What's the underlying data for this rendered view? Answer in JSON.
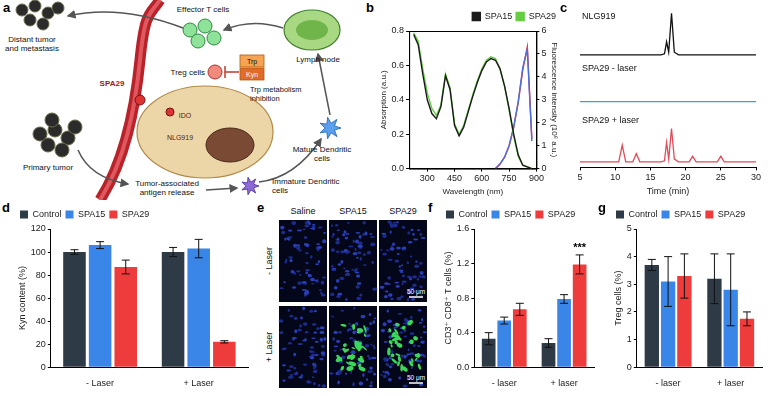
{
  "chart_data": [
    {
      "panel": "b",
      "type": "line",
      "x": [
        225,
        250,
        275,
        300,
        325,
        350,
        375,
        400,
        425,
        450,
        475,
        500,
        525,
        550,
        575,
        600,
        625,
        650,
        675,
        700,
        725,
        750,
        775,
        800,
        825,
        850,
        875,
        900
      ],
      "xlim": [
        200,
        900
      ],
      "xticks": [
        300,
        450,
        600,
        750,
        900
      ],
      "ylim": [
        0,
        0.8
      ],
      "yticks": [
        {
          "value": 0,
          "label": "0.0"
        },
        0.2,
        0.4,
        0.6,
        0.8
      ],
      "y2lim": [
        0,
        6
      ],
      "y2ticks": [
        0,
        1,
        2,
        3,
        4,
        5,
        6
      ],
      "x_label": "Wavelength (nm)",
      "y_label": "Absorption (a.u.)",
      "y2_label": "Fluorescence intensity (10⁶ a.u.)",
      "grid": false,
      "legend": "top-right",
      "series": [
        {
          "name": "SPA15",
          "color": "#1a1a1a",
          "values": [
            0.78,
            0.72,
            0.55,
            0.4,
            0.32,
            0.29,
            0.36,
            0.54,
            0.46,
            0.25,
            0.19,
            0.24,
            0.33,
            0.42,
            0.5,
            0.57,
            0.62,
            0.64,
            0.63,
            0.58,
            0.48,
            0.35,
            0.2,
            0.08,
            0.02,
            0.01,
            0,
            null
          ]
        },
        {
          "name": "SPA29",
          "color": "#66cc44",
          "values": [
            0.79,
            0.74,
            0.58,
            0.44,
            0.35,
            0.31,
            0.37,
            0.55,
            0.47,
            0.26,
            0.2,
            0.25,
            0.34,
            0.43,
            0.51,
            0.58,
            0.63,
            0.65,
            0.64,
            0.58,
            0.48,
            0.34,
            0.19,
            0.07,
            0.02,
            0.01,
            0,
            null
          ]
        },
        {
          "color": "#4a6fe0",
          "axis": "y2",
          "values": [
            null,
            null,
            null,
            null,
            null,
            null,
            null,
            null,
            null,
            null,
            null,
            null,
            null,
            null,
            null,
            null,
            null,
            null,
            0,
            0.2,
            0.5,
            1.0,
            1.8,
            2.9,
            4.4,
            5.2,
            1.2,
            null
          ]
        },
        {
          "color": "#e8303a",
          "axis": "y2",
          "values": [
            null,
            null,
            null,
            null,
            null,
            null,
            null,
            null,
            null,
            null,
            null,
            null,
            null,
            null,
            null,
            null,
            null,
            null,
            0,
            0.2,
            0.5,
            1.0,
            1.8,
            2.9,
            4.3,
            5.3,
            1.3,
            null
          ]
        }
      ]
    },
    {
      "panel": "c",
      "type": "line",
      "x": [
        5,
        7,
        9,
        10.5,
        11,
        11.5,
        12.5,
        13,
        13.5,
        15,
        16.5,
        17,
        17.3,
        17.6,
        18,
        18.4,
        19,
        20.5,
        21,
        21.5,
        23,
        24.5,
        25,
        25.5,
        27,
        30
      ],
      "xlim": [
        5,
        30
      ],
      "xticks": [
        5,
        10,
        15,
        20,
        25,
        30
      ],
      "ylim": [
        0,
        1
      ],
      "x_label": "Time (min)",
      "tick_labels": "x",
      "grid": false,
      "series": [
        {
          "name": "NLG919",
          "color": "#111111",
          "values": [
            0.1,
            0.1,
            0.1,
            0.1,
            0.1,
            0.1,
            0.1,
            0.1,
            0.1,
            0.1,
            0.1,
            0.12,
            0.35,
            0.15,
            0.9,
            0.15,
            0.1,
            0.1,
            0.1,
            0.1,
            0.1,
            0.1,
            0.1,
            0.1,
            0.1,
            0.1
          ]
        },
        {
          "name": "SPA29 - laser",
          "color": "#3aa0e6",
          "values": [
            0.2,
            0.2,
            0.2,
            0.2,
            0.2,
            0.2,
            0.2,
            0.2,
            0.2,
            0.2,
            0.2,
            0.2,
            0.2,
            0.2,
            0.2,
            0.2,
            0.2,
            0.2,
            0.2,
            0.2,
            0.2,
            0.2,
            0.2,
            0.2,
            0.2,
            0.2
          ]
        },
        {
          "name": "SPA29 + laser",
          "color": "#e04b5a",
          "values": [
            0.1,
            0.1,
            0.1,
            0.1,
            0.4,
            0.1,
            0.1,
            0.25,
            0.1,
            0.1,
            0.1,
            0.12,
            0.45,
            0.15,
            0.7,
            0.15,
            0.1,
            0.1,
            0.2,
            0.1,
            0.1,
            0.1,
            0.2,
            0.1,
            0.1,
            0.1
          ]
        }
      ]
    },
    {
      "panel": "d",
      "type": "bar",
      "categories": [
        "- Laser",
        "+ Laser"
      ],
      "y_label": "Kyn content (%)",
      "ylim": [
        0,
        120
      ],
      "yticks": [
        0,
        20,
        40,
        60,
        80,
        100,
        120
      ],
      "grid": false,
      "legend": "top-left",
      "series": [
        {
          "name": "Control",
          "color": "#2e3a45",
          "values": [
            100,
            100
          ],
          "errors": [
            2,
            4
          ]
        },
        {
          "name": "SPA15",
          "color": "#3a86e8",
          "values": [
            106,
            103
          ],
          "errors": [
            3,
            8
          ]
        },
        {
          "name": "SPA29",
          "color": "#ee3b3b",
          "values": [
            87,
            22
          ],
          "errors": [
            6,
            1
          ]
        }
      ]
    },
    {
      "panel": "f",
      "type": "bar",
      "categories": [
        "- laser",
        "+ laser"
      ],
      "y_label": "CD3⁺ CD8⁺ T cells (%)",
      "ylim": [
        0,
        1.6
      ],
      "yticks": [
        {
          "value": 0,
          "label": "0.0"
        },
        0.4,
        0.8,
        1.2,
        1.6
      ],
      "grid": false,
      "legend": "top-left",
      "series": [
        {
          "name": "Control",
          "color": "#2e3a45",
          "values": [
            0.33,
            0.28
          ],
          "errors": [
            0.07,
            0.05
          ]
        },
        {
          "name": "SPA15",
          "color": "#3a86e8",
          "values": [
            0.54,
            0.79
          ],
          "errors": [
            0.04,
            0.05
          ]
        },
        {
          "name": "SPA29",
          "color": "#ee3b3b",
          "values": [
            0.67,
            1.19
          ],
          "errors": [
            0.07,
            0.11
          ]
        }
      ],
      "annotations": [
        {
          "text": "***",
          "category": "+ laser",
          "series": "SPA29"
        }
      ]
    },
    {
      "panel": "g",
      "type": "bar",
      "categories": [
        "- laser",
        "+ laser"
      ],
      "y_label": "Treg cells (%)",
      "ylim": [
        0,
        5
      ],
      "yticks": [
        0,
        1,
        2,
        3,
        4,
        5
      ],
      "grid": false,
      "legend": "top-left",
      "series": [
        {
          "name": "Control",
          "color": "#2e3a45",
          "values": [
            3.7,
            3.2
          ],
          "errors": [
            0.2,
            0.9
          ]
        },
        {
          "name": "SPA15",
          "color": "#3a86e8",
          "values": [
            3.1,
            2.8
          ],
          "errors": [
            0.9,
            1.3
          ]
        },
        {
          "name": "SPA29",
          "color": "#ee3b3b",
          "values": [
            3.3,
            1.75
          ],
          "errors": [
            0.8,
            0.25
          ]
        }
      ]
    }
  ],
  "diagram": {
    "panel": "a",
    "labels": {
      "effector": "Effector T cells",
      "distant": "Distant tumor and metastasis",
      "treg": "Treg cells",
      "trp": "Trp",
      "kyn": "Kyn",
      "inhibition": "Trp metabolism inhibition",
      "lymph": "Lymph node",
      "spa": "SPA29",
      "ido": "IDO",
      "drug": "NLG919",
      "mature": "Mature Dendritic cells",
      "immature": "Immature Dendritic cells",
      "antigen": "Tumor-associated antigen release",
      "primary": "Primary tumor"
    }
  },
  "images": {
    "panel": "e",
    "columns": [
      "Saline",
      "SPA15",
      "SPA29"
    ],
    "rows": [
      "- Laser",
      "+ Laser"
    ],
    "scale_bar": "50 μm"
  }
}
